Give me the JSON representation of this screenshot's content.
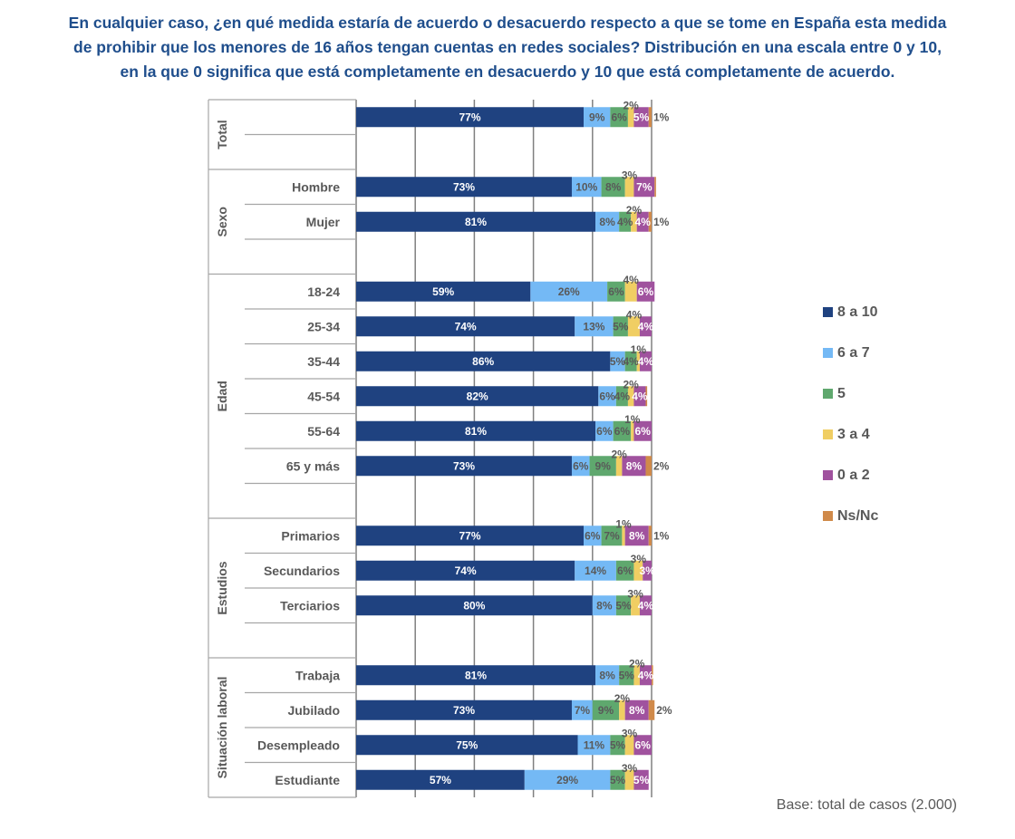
{
  "title_lines": [
    "En cualquier caso, ¿en qué medida estaría de acuerdo o desacuerdo respecto a que se tome en España esta medida",
    "de prohibir que los menores de 16 años tengan cuentas en redes sociales? Distribución en una escala entre 0 y 10,",
    "en la que 0 significa que está completamente en desacuerdo y 10 que está completamente de acuerdo."
  ],
  "footer": "Base: total de casos  (2.000)",
  "colors": {
    "8a10": "#1F4280",
    "6a7": "#74B9F5",
    "5": "#5FA86E",
    "3a4": "#F0CE63",
    "0a2": "#A0529E",
    "nsnc": "#D08A4A"
  },
  "chart_data": {
    "type": "bar",
    "orientation": "horizontal",
    "stacked": "percent",
    "title": "En cualquier caso, ¿en qué medida estaría de acuerdo o desacuerdo respecto a que se tome en España esta medida de prohibir que los menores de 16 años tengan cuentas en redes sociales? Distribución en una escala entre 0 y 10, en la que 0 significa que está completamente en desacuerdo y 10 que está completamente de acuerdo.",
    "xlim": [
      0,
      100
    ],
    "grid": true,
    "legend_position": "right",
    "series": [
      {
        "key": "8a10",
        "name": "8 a 10",
        "label_color": "#ffffff"
      },
      {
        "key": "6a7",
        "name": "6 a 7",
        "label_color": "#595959"
      },
      {
        "key": "5",
        "name": "5",
        "label_color": "#595959"
      },
      {
        "key": "3a4",
        "name": "3 a 4",
        "label_color": "#595959"
      },
      {
        "key": "0a2",
        "name": "0 a 2",
        "label_color": "#ffffff"
      },
      {
        "key": "nsnc",
        "name": "Ns/Nc",
        "label_color": "#595959"
      }
    ],
    "groups": [
      {
        "name": "Total",
        "slots": 2,
        "rows": [
          {
            "label": "",
            "values": [
              77,
              9,
              6,
              2,
              5,
              1
            ],
            "labels": [
              "77%",
              "9%",
              "6%",
              "2%",
              "5%",
              "1%"
            ]
          }
        ]
      },
      {
        "name": "Sexo",
        "slots": 3,
        "rows": [
          {
            "label": "Hombre",
            "values": [
              73,
              10,
              8,
              3,
              7,
              0.5
            ],
            "labels": [
              "73%",
              "10%",
              "8%",
              "3%",
              "7%",
              ""
            ]
          },
          {
            "label": "Mujer",
            "values": [
              81,
              8,
              4,
              2,
              4,
              1
            ],
            "labels": [
              "81%",
              "8%",
              "4%",
              "2%",
              "4%",
              "1%"
            ]
          }
        ]
      },
      {
        "name": "Edad",
        "slots": 7,
        "rows": [
          {
            "label": "18-24",
            "values": [
              59,
              26,
              6,
              4,
              6,
              0
            ],
            "labels": [
              "59%",
              "26%",
              "6%",
              "4%",
              "6%",
              ""
            ]
          },
          {
            "label": "25-34",
            "values": [
              74,
              13,
              5,
              4,
              4,
              0
            ],
            "labels": [
              "74%",
              "13%",
              "5%",
              "4%",
              "4%",
              ""
            ]
          },
          {
            "label": "35-44",
            "values": [
              86,
              5,
              4,
              1,
              4,
              0
            ],
            "labels": [
              "86%",
              "5%",
              "4%",
              "1%",
              "4%",
              ""
            ]
          },
          {
            "label": "45-54",
            "values": [
              82,
              6,
              4,
              2,
              4,
              0.5
            ],
            "labels": [
              "82%",
              "6%",
              "4%",
              "2%",
              "4%",
              ""
            ]
          },
          {
            "label": "55-64",
            "values": [
              81,
              6,
              6,
              1,
              6,
              0
            ],
            "labels": [
              "81%",
              "6%",
              "6%",
              "1%",
              "6%",
              ""
            ]
          },
          {
            "label": "65 y más",
            "values": [
              73,
              6,
              9,
              2,
              8,
              2
            ],
            "labels": [
              "73%",
              "6%",
              "9%",
              "2%",
              "8%",
              "2%"
            ]
          }
        ]
      },
      {
        "name": "Estudios",
        "slots": 4,
        "rows": [
          {
            "label": "Primarios",
            "values": [
              77,
              6,
              7,
              1,
              8,
              1
            ],
            "labels": [
              "77%",
              "6%",
              "7%",
              "1%",
              "8%",
              "1%"
            ]
          },
          {
            "label": "Secundarios",
            "values": [
              74,
              14,
              6,
              3,
              3,
              0
            ],
            "labels": [
              "74%",
              "14%",
              "6%",
              "3%",
              "3%",
              ""
            ]
          },
          {
            "label": "Terciarios",
            "values": [
              80,
              8,
              5,
              3,
              4,
              0
            ],
            "labels": [
              "80%",
              "8%",
              "5%",
              "3%",
              "4%",
              ""
            ]
          }
        ]
      },
      {
        "name": "Situación laboral",
        "slots": 4,
        "rows": [
          {
            "label": "Trabaja",
            "values": [
              81,
              8,
              5,
              2,
              4,
              0.5
            ],
            "labels": [
              "81%",
              "8%",
              "5%",
              "2%",
              "4%",
              ""
            ]
          },
          {
            "label": "Jubilado",
            "values": [
              73,
              7,
              9,
              2,
              8,
              2
            ],
            "labels": [
              "73%",
              "7%",
              "9%",
              "2%",
              "8%",
              "2%"
            ]
          },
          {
            "label": "Desempleado",
            "values": [
              75,
              11,
              5,
              3,
              6,
              0
            ],
            "labels": [
              "75%",
              "11%",
              "5%",
              "3%",
              "6%",
              ""
            ]
          },
          {
            "label": "Estudiante",
            "values": [
              57,
              29,
              5,
              3,
              5,
              0
            ],
            "labels": [
              "57%",
              "29%",
              "5%",
              "3%",
              "5%",
              ""
            ]
          }
        ]
      }
    ]
  }
}
